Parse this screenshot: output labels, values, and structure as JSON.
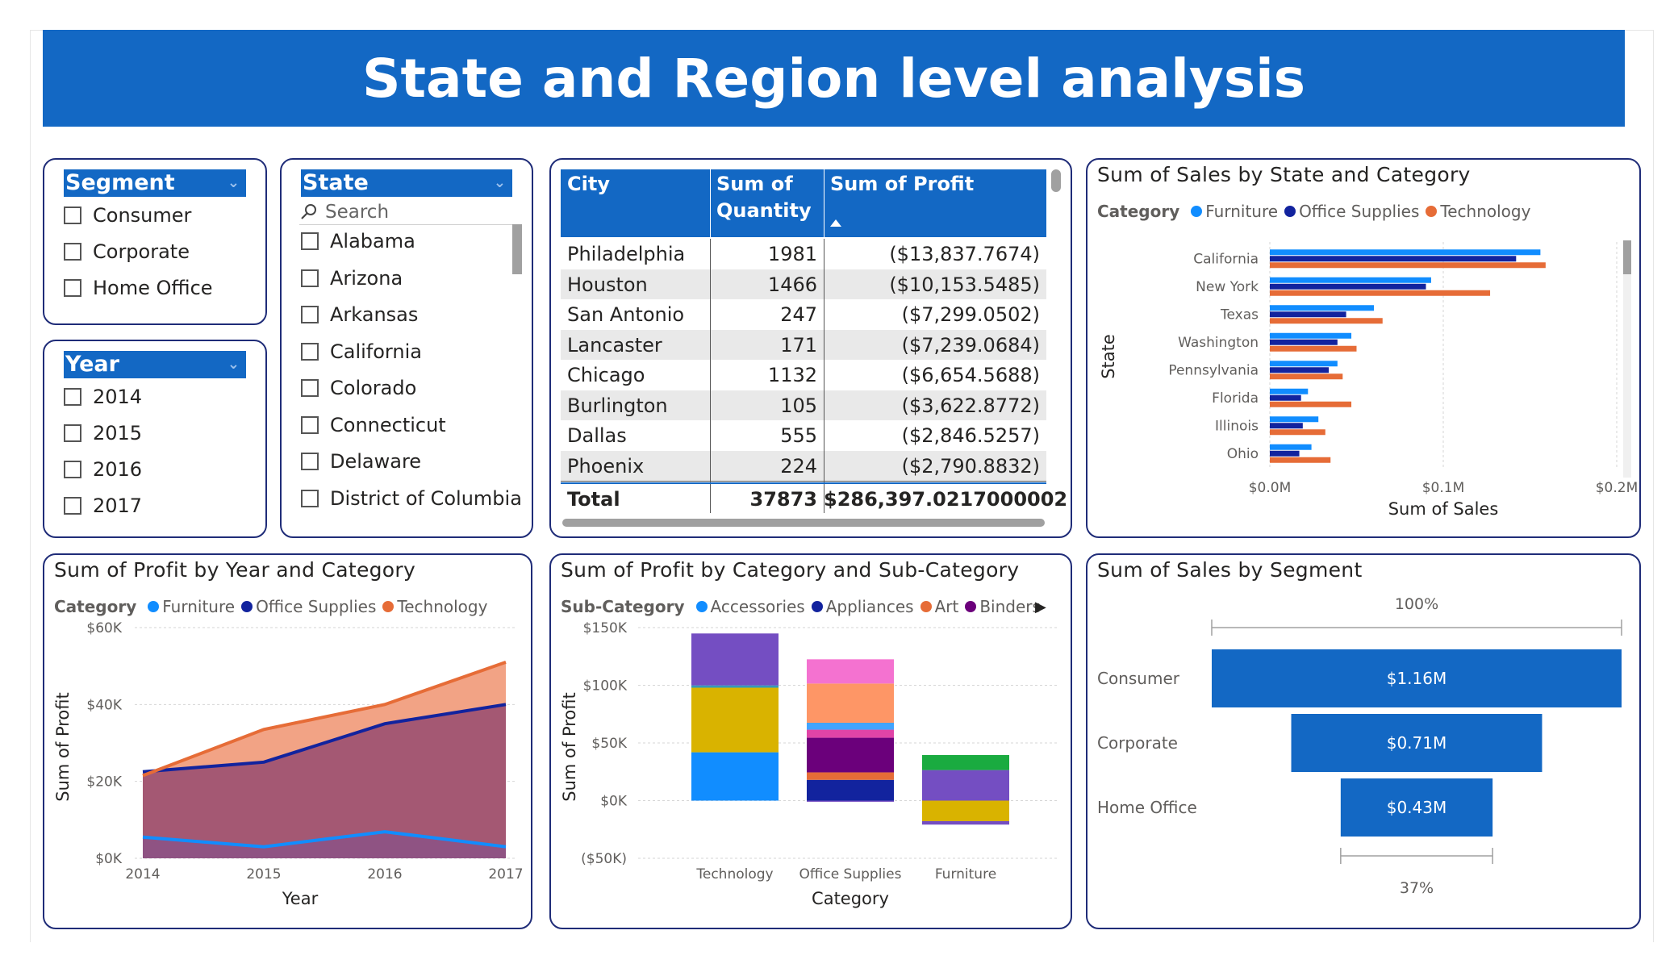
{
  "title": "State and Region level analysis",
  "segment_slicer": {
    "header": "Segment",
    "options": [
      "Consumer",
      "Corporate",
      "Home Office"
    ]
  },
  "year_slicer": {
    "header": "Year",
    "options": [
      "2014",
      "2015",
      "2016",
      "2017"
    ]
  },
  "state_slicer": {
    "header": "State",
    "search_placeholder": "Search",
    "options": [
      "Alabama",
      "Arizona",
      "Arkansas",
      "California",
      "Colorado",
      "Connecticut",
      "Delaware",
      "District of Columbia"
    ]
  },
  "city_table": {
    "columns": [
      "City",
      "Sum of Quantity",
      "Sum of Profit"
    ],
    "col_lines": [
      [
        "City"
      ],
      [
        "Sum of",
        "Quantity"
      ],
      [
        "Sum of Profit"
      ]
    ],
    "rows": [
      {
        "city": "Philadelphia",
        "qty": "1981",
        "profit": "($13,837.7674)"
      },
      {
        "city": "Houston",
        "qty": "1466",
        "profit": "($10,153.5485)"
      },
      {
        "city": "San Antonio",
        "qty": "247",
        "profit": "($7,299.0502)"
      },
      {
        "city": "Lancaster",
        "qty": "171",
        "profit": "($7,239.0684)"
      },
      {
        "city": "Chicago",
        "qty": "1132",
        "profit": "($6,654.5688)"
      },
      {
        "city": "Burlington",
        "qty": "105",
        "profit": "($3,622.8772)"
      },
      {
        "city": "Dallas",
        "qty": "555",
        "profit": "($2,846.5257)"
      },
      {
        "city": "Phoenix",
        "qty": "224",
        "profit": "($2,790.8832)"
      }
    ],
    "total": {
      "label": "Total",
      "qty": "37873",
      "profit": "$286,397.0217000002"
    }
  },
  "colors": {
    "furniture": "#118dff",
    "office_supplies": "#12239e",
    "technology": "#e66c37",
    "header": "#1368c4"
  },
  "chart_data": [
    {
      "id": "sales_by_state",
      "type": "bar",
      "orientation": "horizontal",
      "title": "Sum of Sales by State and Category",
      "legend_title": "Category",
      "categories": [
        "California",
        "New York",
        "Texas",
        "Washington",
        "Pennsylvania",
        "Florida",
        "Illinois",
        "Ohio"
      ],
      "series": [
        {
          "name": "Furniture",
          "color": "#118dff",
          "values": [
            156000,
            93000,
            60000,
            47000,
            39000,
            22000,
            28000,
            24000
          ]
        },
        {
          "name": "Office Supplies",
          "color": "#12239e",
          "values": [
            142000,
            90000,
            44000,
            39000,
            34000,
            18000,
            19000,
            17000
          ]
        },
        {
          "name": "Technology",
          "color": "#e66c37",
          "values": [
            159000,
            127000,
            65000,
            50000,
            42000,
            47000,
            32000,
            35000
          ]
        }
      ],
      "xlabel": "Sum of Sales",
      "ylabel": "State",
      "xticks": [
        "$0.0M",
        "$0.1M",
        "$0.2M"
      ],
      "xlim": [
        0,
        200000
      ]
    },
    {
      "id": "profit_by_year",
      "type": "area",
      "title": "Sum of Profit by Year and Category",
      "legend_title": "Category",
      "x": [
        2014,
        2015,
        2016,
        2017
      ],
      "xticks": [
        "2014",
        "2015",
        "2016",
        "2017"
      ],
      "series": [
        {
          "name": "Furniture",
          "color": "#118dff",
          "values": [
            5500,
            3000,
            6900,
            3000
          ]
        },
        {
          "name": "Office Supplies",
          "color": "#12239e",
          "values": [
            22500,
            25000,
            35000,
            40000
          ]
        },
        {
          "name": "Technology",
          "color": "#e66c37",
          "values": [
            21500,
            33500,
            40000,
            51000
          ]
        }
      ],
      "xlabel": "Year",
      "ylabel": "Sum of Profit",
      "yticks": [
        "$0K",
        "$20K",
        "$40K",
        "$60K"
      ],
      "ylim": [
        0,
        60000
      ]
    },
    {
      "id": "profit_by_subcategory",
      "type": "bar",
      "stacked": true,
      "title": "Sum of Profit by Category and Sub-Category",
      "legend_title": "Sub-Category",
      "legend": [
        {
          "name": "Accessories",
          "color": "#118dff"
        },
        {
          "name": "Appliances",
          "color": "#12239e"
        },
        {
          "name": "Art",
          "color": "#e66c37"
        },
        {
          "name": "Binders",
          "color": "#6b007b"
        }
      ],
      "categories": [
        "Technology",
        "Office Supplies",
        "Furniture"
      ],
      "stacks": [
        [
          {
            "color": "#118dff",
            "value": 41900
          },
          {
            "color": "#d9b300",
            "value": 56000
          },
          {
            "color": "#3599b8",
            "value": 2000
          },
          {
            "color": "#744ec2",
            "value": 45000
          }
        ],
        [
          {
            "color": "#744ec2",
            "value": -1000
          },
          {
            "color": "#12239e",
            "value": 18000
          },
          {
            "color": "#e66c37",
            "value": 6500
          },
          {
            "color": "#6b007b",
            "value": 30000
          },
          {
            "color": "#e044a7",
            "value": 7000
          },
          {
            "color": "#41a4ff",
            "value": 6000
          },
          {
            "color": "#fe9666",
            "value": 34000
          },
          {
            "color": "#f472d0",
            "value": 21000
          }
        ],
        [
          {
            "color": "#d9b300",
            "value": -17800
          },
          {
            "color": "#744ec2",
            "value": -3000
          },
          {
            "color": "#744ec2",
            "value": 26500
          },
          {
            "color": "#1aab40",
            "value": 13000
          }
        ]
      ],
      "xlabel": "Category",
      "ylabel": "Sum of Profit",
      "yticks": [
        "($50K)",
        "$0K",
        "$50K",
        "$100K",
        "$150K"
      ],
      "ylim": [
        -50000,
        150000
      ]
    },
    {
      "id": "sales_by_segment",
      "type": "funnel",
      "title": "Sum of Sales by Segment",
      "categories": [
        "Consumer",
        "Corporate",
        "Home Office"
      ],
      "values": [
        1160000,
        710000,
        430000
      ],
      "labels": [
        "$1.16M",
        "$0.71M",
        "$0.43M"
      ],
      "top_percent": "100%",
      "bottom_percent": "37%",
      "color": "#1368c4"
    }
  ]
}
